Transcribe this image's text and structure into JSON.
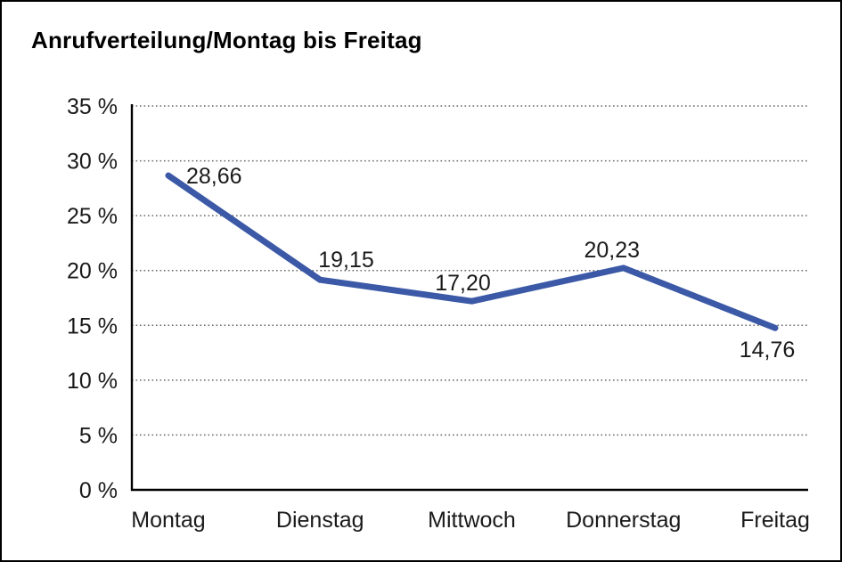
{
  "chart": {
    "title": "Anrufverteilung/Montag bis Freitag"
  },
  "chart_data": {
    "type": "line",
    "title": "Anrufverteilung/Montag bis Freitag",
    "categories": [
      "Montag",
      "Dienstag",
      "Mittwoch",
      "Donnerstag",
      "Freitag"
    ],
    "series": [
      {
        "name": "Anrufverteilung",
        "values": [
          28.66,
          19.15,
          17.2,
          20.23,
          14.76
        ],
        "labels": [
          "28,66",
          "19,15",
          "17,20",
          "20,23",
          "14,76"
        ],
        "color": "#3B59A6"
      }
    ],
    "xlabel": "",
    "ylabel": "",
    "ylim": [
      0,
      35
    ],
    "y_tick_step": 5,
    "y_tick_labels": [
      "0 %",
      "5 %",
      "10 %",
      "15 %",
      "20 %",
      "25 %",
      "30 %",
      "35 %"
    ],
    "grid": "horizontal-dotted",
    "legend": "none",
    "colors": {
      "line": "#3B59A6",
      "axis": "#000000",
      "gridline": "#666666",
      "text": "#1a1a1a",
      "background": "#ffffff",
      "frame_border": "#000000"
    }
  }
}
